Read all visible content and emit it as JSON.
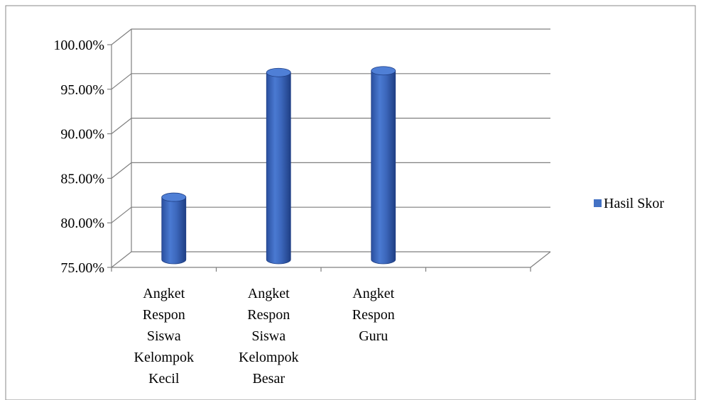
{
  "chart_data": {
    "type": "bar",
    "style": "3d-cylinder",
    "title": "",
    "xlabel": "",
    "ylabel": "",
    "categories": [
      [
        "Angket",
        "Respon",
        "Siswa",
        "Kelompok",
        "Kecil"
      ],
      [
        "Angket",
        "Respon",
        "Siswa",
        "Kelompok",
        "Besar"
      ],
      [
        "Angket",
        "Respon",
        "Guru"
      ],
      [
        ""
      ]
    ],
    "series": [
      {
        "name": "Hasil Skor",
        "color": "#4472c4",
        "values": [
          82.0,
          96.0,
          96.2,
          null
        ]
      }
    ],
    "ylim": [
      75,
      100
    ],
    "yticks": [
      75,
      80,
      85,
      90,
      95,
      100
    ],
    "ytick_labels": [
      "75.00%",
      "80.00%",
      "85.00%",
      "90.00%",
      "95.00%",
      "100.00%"
    ],
    "grid": true,
    "legend": {
      "position": "right"
    }
  }
}
